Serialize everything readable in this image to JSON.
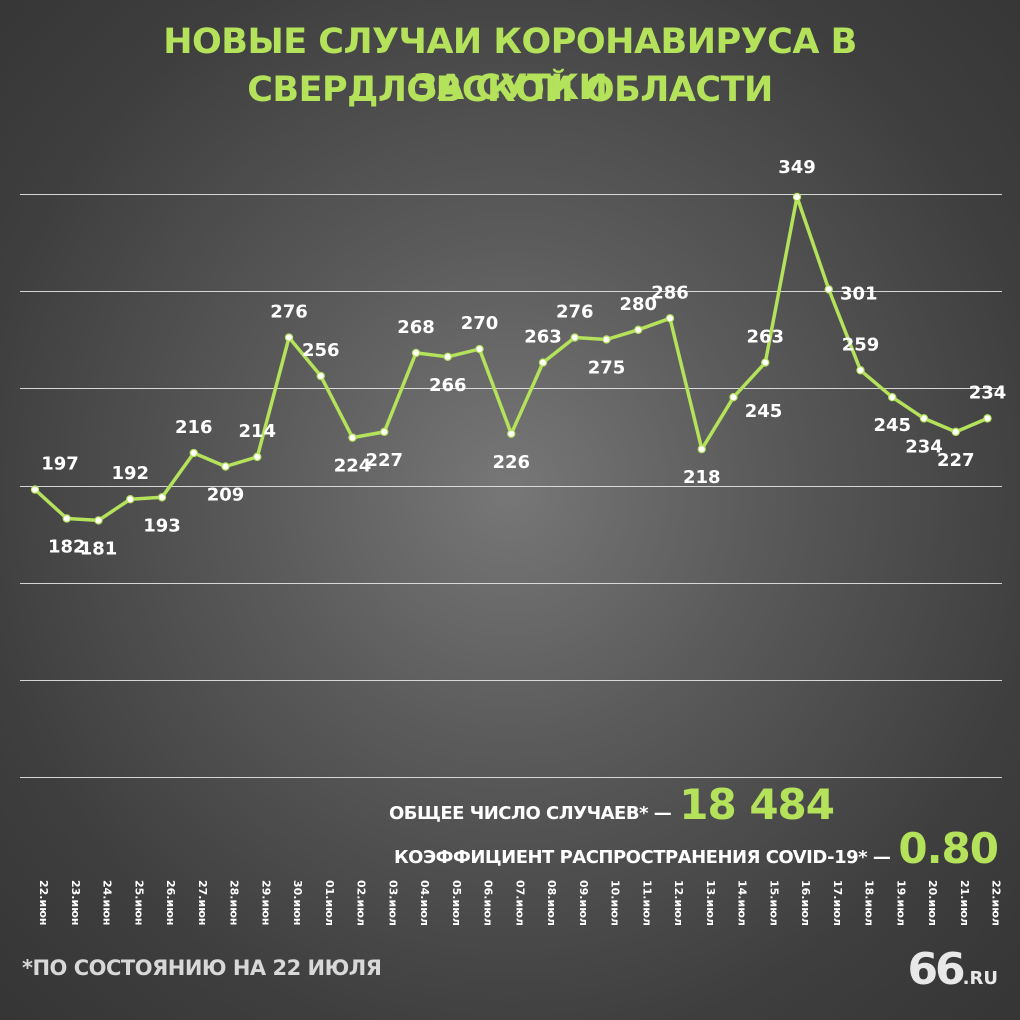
{
  "title_line1": "НОВЫЕ СЛУЧАИ КОРОНАВИРУСА В СВЕРДЛОВСКОЙ ОБЛАСТИ",
  "title_line2": "ЗА СУТКИ",
  "colors": {
    "accent": "#b4e25a",
    "text": "#ffffff",
    "grid": "#e6e6e6"
  },
  "stats": {
    "total_label": "ОБЩЕЕ ЧИСЛО СЛУЧАЕВ* —",
    "total_value": "18 484",
    "coeff_label": "КОЭФФИЦИЕНТ РАСПРОСТРАНЕНИЯ COVID-19* —",
    "coeff_value": "0.80"
  },
  "footnote": "*ПО СОСТОЯНИЮ НА 22 ИЮЛЯ",
  "logo": {
    "main": "66",
    "suffix": ".RU"
  },
  "chart_data": {
    "type": "line",
    "categories": [
      "22.июн",
      "23.июн",
      "24.июн",
      "25.июн",
      "26.июн",
      "27.июн",
      "28.июн",
      "29.июн",
      "30.июн",
      "01.июл",
      "02.июл",
      "03.июл",
      "04.июл",
      "05.июл",
      "06.июл",
      "07.июл",
      "08.июл",
      "09.июл",
      "10.июл",
      "11.июл",
      "12.июл",
      "13.июл",
      "14.июл",
      "15.июл",
      "16.июл",
      "17.июл",
      "18.июл",
      "19.июл",
      "20.июл",
      "21.июл",
      "22.июл"
    ],
    "values": [
      197,
      182,
      181,
      192,
      193,
      216,
      209,
      214,
      276,
      256,
      224,
      227,
      268,
      266,
      270,
      226,
      263,
      276,
      275,
      280,
      286,
      218,
      245,
      263,
      349,
      301,
      259,
      245,
      234,
      227,
      234
    ],
    "ylim": [
      40,
      370
    ],
    "grid": true,
    "gridlines": 7
  }
}
